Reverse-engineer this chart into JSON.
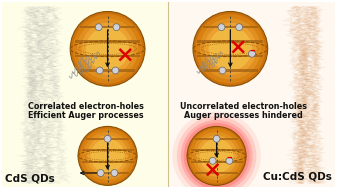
{
  "bg_left": "#fefee8",
  "bg_right": "#fef8f0",
  "text_top_left_1": "Correlated electron-holes",
  "text_top_left_2": "Efficient Auger processes",
  "text_top_right_1": "Uncorrelated electron-holes",
  "text_top_right_2": "Auger processes hindered",
  "label_bottom_left": "CdS QDs",
  "label_bottom_right": "Cu:CdS QDs",
  "text_fontsize": 5.8,
  "label_fontsize": 7.5,
  "qd_colors": [
    "#C87010",
    "#D88010",
    "#E09020",
    "#ECA030",
    "#F0B840"
  ],
  "stripe_color": "#A06010",
  "ellipse_color": "#8B5000",
  "particle_color": "#d0d0d8",
  "particle_edge": "#666666",
  "arrow_color": "#111111",
  "red_color": "#dd0000",
  "red_glow": "#ff2222",
  "gray_signal": "#999999",
  "orange_signal": "#cc7733",
  "divider_color": "#d0c090"
}
